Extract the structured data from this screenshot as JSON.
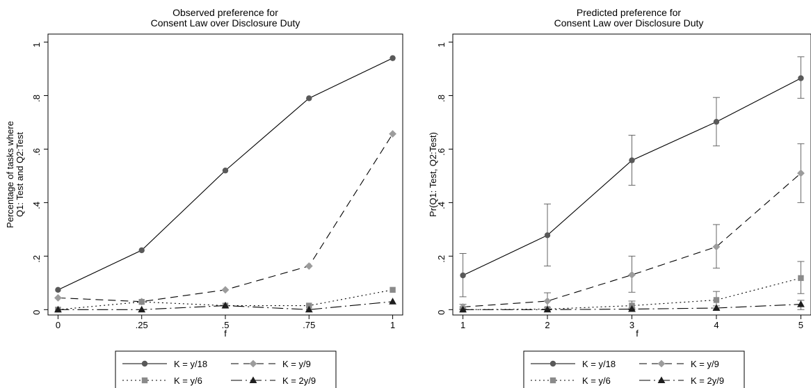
{
  "chart_data": [
    {
      "type": "line",
      "title": [
        "Observed preference for",
        "Consent Law over Disclosure Duty"
      ],
      "xlabel": "f",
      "ylabel": [
        "Percentage of tasks where",
        "Q1: Test and Q2:Test"
      ],
      "x": [
        0,
        0.25,
        0.5,
        0.75,
        1
      ],
      "xticks": [
        {
          "v": 0,
          "label": "0"
        },
        {
          "v": 0.25,
          "label": ".25"
        },
        {
          "v": 0.5,
          "label": ".5"
        },
        {
          "v": 0.75,
          "label": ".75"
        },
        {
          "v": 1,
          "label": "1"
        }
      ],
      "yticks": [
        {
          "v": 0,
          "label": "0"
        },
        {
          "v": 0.2,
          "label": ".2"
        },
        {
          "v": 0.4,
          "label": ".4"
        },
        {
          "v": 0.6,
          "label": ".6"
        },
        {
          "v": 0.8,
          "label": ".8"
        },
        {
          "v": 1,
          "label": "1"
        }
      ],
      "xlim": [
        -0.03,
        1.03
      ],
      "ylim": [
        -0.02,
        1.03
      ],
      "grid": false,
      "legend_position": "bottom",
      "series": [
        {
          "name": "K = y/18",
          "key": "y18",
          "values": [
            0.074,
            0.222,
            0.52,
            0.79,
            0.94
          ]
        },
        {
          "name": "K = y/9",
          "key": "y9",
          "values": [
            0.044,
            0.03,
            0.074,
            0.163,
            0.657
          ]
        },
        {
          "name": "K = y/6",
          "key": "y6",
          "values": [
            0.0,
            0.029,
            0.015,
            0.015,
            0.074
          ]
        },
        {
          "name": "K = 2y/9",
          "key": "2y9",
          "values": [
            0.0,
            0.0,
            0.015,
            0.0,
            0.03
          ]
        }
      ]
    },
    {
      "type": "line",
      "title": [
        "Predicted preference for",
        "Consent Law over Disclosure Duty"
      ],
      "xlabel": "f",
      "ylabel": [
        "Pr(Q1: Test, Q2:Test)"
      ],
      "x": [
        1,
        2,
        3,
        4,
        5
      ],
      "xticks": [
        {
          "v": 1,
          "label": "1"
        },
        {
          "v": 2,
          "label": "2"
        },
        {
          "v": 3,
          "label": "3"
        },
        {
          "v": 4,
          "label": "4"
        },
        {
          "v": 5,
          "label": "5"
        }
      ],
      "yticks": [
        {
          "v": 0,
          "label": "0"
        },
        {
          "v": 0.2,
          "label": ".2"
        },
        {
          "v": 0.4,
          "label": ".4"
        },
        {
          "v": 0.6,
          "label": ".6"
        },
        {
          "v": 0.8,
          "label": ".8"
        },
        {
          "v": 1,
          "label": "1"
        }
      ],
      "xlim": [
        0.88,
        5.12
      ],
      "ylim": [
        -0.02,
        1.03
      ],
      "grid": false,
      "legend_position": "bottom",
      "series": [
        {
          "name": "K = y/18",
          "key": "y18",
          "values": [
            0.128,
            0.278,
            0.558,
            0.702,
            0.865
          ],
          "ci_low": [
            0.048,
            0.163,
            0.465,
            0.612,
            0.79
          ],
          "ci_high": [
            0.21,
            0.395,
            0.652,
            0.793,
            0.945
          ]
        },
        {
          "name": "K = y/9",
          "key": "y9",
          "values": [
            0.01,
            0.032,
            0.13,
            0.235,
            0.51
          ],
          "ci_low": [
            0.0,
            0.0,
            0.065,
            0.155,
            0.4
          ],
          "ci_high": [
            0.02,
            0.063,
            0.2,
            0.318,
            0.62
          ]
        },
        {
          "name": "K = y/6",
          "key": "y6",
          "values": [
            0.0,
            0.002,
            0.015,
            0.036,
            0.118
          ],
          "ci_low": [
            0.0,
            0.0,
            0.0,
            0.006,
            0.06
          ],
          "ci_high": [
            0.003,
            0.008,
            0.032,
            0.068,
            0.18
          ]
        },
        {
          "name": "K = 2y/9",
          "key": "2y9",
          "values": [
            0.0,
            0.0,
            0.002,
            0.006,
            0.02
          ],
          "ci_low": [
            0.0,
            0.0,
            0.0,
            0.0,
            0.0
          ],
          "ci_high": [
            0.001,
            0.002,
            0.006,
            0.014,
            0.035
          ]
        }
      ]
    }
  ],
  "series_styles": {
    "y18": {
      "color": "#000000",
      "marker": "circle",
      "marker_color": "#595959",
      "dash": "none"
    },
    "y9": {
      "color": "#000000",
      "marker": "diamond",
      "marker_color": "#9c9c9c",
      "dash": "11,7"
    },
    "y6": {
      "color": "#000000",
      "marker": "square",
      "marker_color": "#8a8a8a",
      "dash": "2,4"
    },
    "2y9": {
      "color": "#000000",
      "marker": "triangle",
      "marker_color": "#1e1e1e",
      "dash": "16,5,2,5"
    }
  },
  "ci_color": "#666666"
}
